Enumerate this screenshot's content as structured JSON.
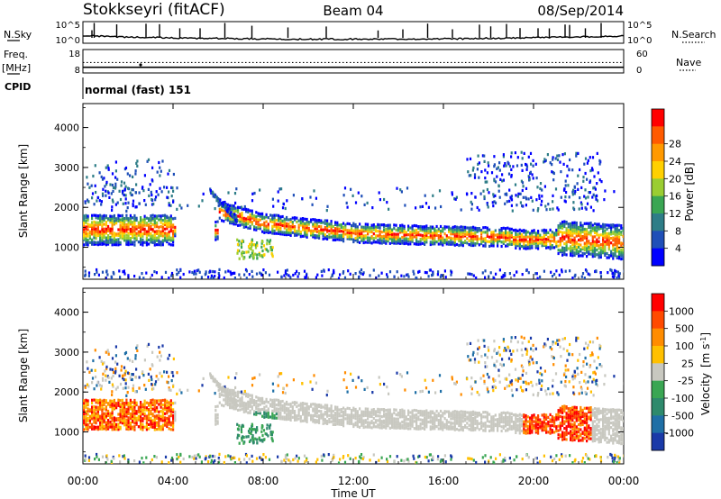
{
  "header": {
    "station": "Stokkseyri (fitACF)",
    "beam": "Beam 04",
    "date": "08/Sep/2014"
  },
  "chart_data": [
    {
      "type": "line",
      "panel": "noise",
      "left_label": "N.Sky",
      "right_label": "N.Search",
      "left_ticks": [
        "10^5",
        "10^0"
      ],
      "right_ticks": [
        "10^5",
        "10^0"
      ],
      "ylim": [
        0,
        5
      ],
      "x_hours": [
        0,
        0.5,
        1,
        1.5,
        2,
        2.5,
        3,
        3.5,
        4,
        4.5,
        5,
        5.5,
        6,
        6.5,
        7,
        7.5,
        8,
        8.5,
        9,
        9.5,
        10,
        10.5,
        11,
        11.5,
        12,
        12.5,
        13,
        13.5,
        14,
        14.5,
        15,
        15.5,
        16,
        16.5,
        17,
        17.5,
        18,
        18.5,
        19,
        19.5,
        20,
        20.5,
        21,
        21.5,
        22,
        22.5,
        23,
        23.5,
        24
      ],
      "series": [
        {
          "values": [
            1.7,
            1.6,
            1.5,
            1.4,
            1.3,
            1.3,
            1.2,
            1.2,
            1.1,
            1.1,
            1.0,
            1.0,
            1.0,
            1.0,
            0.9,
            0.9,
            0.9,
            0.9,
            0.8,
            0.8,
            0.8,
            0.8,
            0.8,
            0.8,
            0.8,
            0.8,
            0.8,
            0.8,
            0.8,
            0.8,
            0.8,
            0.8,
            0.9,
            0.9,
            0.9,
            1.0,
            1.0,
            1.0,
            1.1,
            1.1,
            1.2,
            1.2,
            1.3,
            1.3,
            1.4,
            1.4,
            1.5,
            1.5,
            1.6
          ]
        }
      ],
      "spikes_hours": [
        0.4,
        0.5,
        1.5,
        2.8,
        3.4,
        4.3,
        5.2,
        6.3,
        7.5,
        9.1,
        10.8,
        13.1,
        14.2,
        15.3,
        16.4,
        17.6,
        18.1,
        18.8,
        19.4,
        20.2,
        20.7,
        21.4,
        21.6,
        22.3,
        23.0
      ]
    },
    {
      "type": "line",
      "panel": "frequency",
      "left_label": "Freq.",
      "left_unit": "[MHz]",
      "left_ticks": [
        "18",
        "8"
      ],
      "right_label": "Nave",
      "right_ticks": [
        "60",
        "0"
      ],
      "ylim": [
        8,
        18
      ],
      "series": [
        {
          "values": [
            10.2
          ]
        },
        {
          "values": [
            12.4
          ]
        }
      ]
    },
    {
      "type": "table",
      "panel": "cpid",
      "label": "CPID",
      "value": "normal (fast) 151"
    },
    {
      "type": "heatmap",
      "panel": "power",
      "ylabel": "Slant Range [km]",
      "yticks": [
        "1000",
        "2000",
        "3000",
        "4000"
      ],
      "ylim": [
        200,
        4600
      ],
      "colorbar": {
        "label": "Power [dB]",
        "ticks": [
          "4",
          "8",
          "12",
          "16",
          "20",
          "24",
          "28"
        ],
        "colors": [
          "#0000ff",
          "#1f4fb8",
          "#2e7d87",
          "#3aa653",
          "#9acd32",
          "#ffd000",
          "#ff9900",
          "#ff5a00",
          "#ff0000"
        ]
      }
    },
    {
      "type": "heatmap",
      "panel": "velocity",
      "ylabel": "Slant Range [km]",
      "yticks": [
        "1000",
        "2000",
        "3000",
        "4000"
      ],
      "ylim": [
        200,
        4600
      ],
      "colorbar": {
        "label": "Velocity",
        "label_unit": "[m s",
        "label_exp": "-1",
        "label_close": "]",
        "ticks": [
          "1000",
          "500",
          "100",
          "25",
          "-25",
          "-100",
          "-500",
          "-1000"
        ],
        "colors": [
          "#1a3aa8",
          "#1f6fa6",
          "#2e8a6c",
          "#3aa653",
          "#c8c8c0",
          "#ffc000",
          "#ff8c00",
          "#ff4a00",
          "#ff0000"
        ]
      }
    },
    {
      "type": "table",
      "panel": "time-axis",
      "xlabel": "Time UT",
      "xticks": [
        "00:00",
        "04:00",
        "08:00",
        "12:00",
        "16:00",
        "20:00",
        "00:00"
      ]
    }
  ]
}
